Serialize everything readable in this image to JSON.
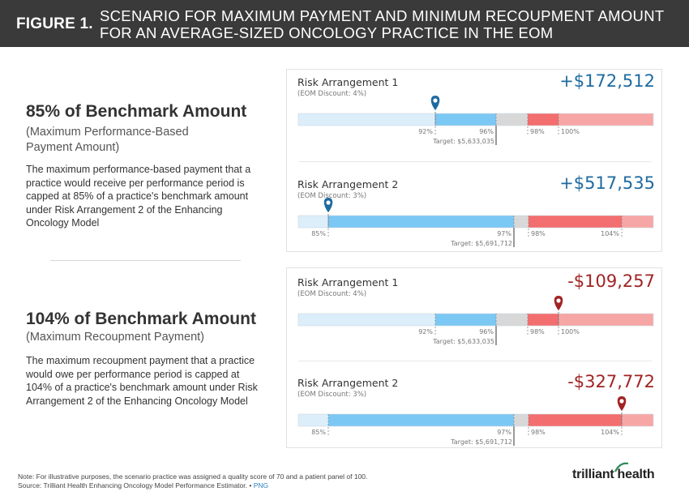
{
  "figure_label": "FIGURE 1.",
  "figure_title_line1": "SCENARIO FOR MAXIMUM PAYMENT AND MINIMUM RECOUPMENT AMOUNT",
  "figure_title_line2": "FOR AN AVERAGE-SIZED ONCOLOGY PRACTICE IN THE EOM",
  "sections": [
    {
      "heading": "85% of Benchmark Amount",
      "subheading_line1": "(Maximum Performance-Based",
      "subheading_line2": "Payment Amount)",
      "body": "The maximum performance-based payment that a practice would receive per performance period is capped at 85% of a practice's benchmark amount under Risk Arrangement 2 of the Enhancing Oncology Model"
    },
    {
      "heading": "104% of Benchmark Amount",
      "subheading_line1": "(Maximum Recoupment Payment)",
      "subheading_line2": "",
      "body": "The maximum recoupment payment that a practice would owe per performance period is capped at 104% of a practice's benchmark amount under Risk Arrangement 2 of the Enhancing Oncology Model"
    }
  ],
  "chart_data": [
    {
      "type": "bar",
      "title": "Risk Arrangement 1",
      "subtitle": "(EOM Discount: 4%)",
      "amount": "+$172,512",
      "sign": "pos",
      "axis_range": [
        85,
        104
      ],
      "segments": [
        {
          "from": 85,
          "to": 92,
          "color": "#ddeefb"
        },
        {
          "from": 92,
          "to": 96,
          "color": "#7cc8f4"
        },
        {
          "from": 96,
          "to": 98,
          "color": "#d8d8d8"
        },
        {
          "from": 98,
          "to": 100,
          "color": "#f36e6e"
        },
        {
          "from": 100,
          "to": 104,
          "color": "#f7a6a6"
        }
      ],
      "ticks": [
        {
          "value": 92,
          "label": "92%",
          "side": "left"
        },
        {
          "value": 96,
          "label": "96%",
          "side": "left"
        },
        {
          "value": 98,
          "label": "98%",
          "side": "right"
        },
        {
          "value": 100,
          "label": "100%",
          "side": "right"
        }
      ],
      "target_label": "Target: $5,633,035",
      "target_value": 96,
      "marker_value": 92,
      "marker_color": "#1e6aa0"
    },
    {
      "type": "bar",
      "title": "Risk Arrangement 2",
      "subtitle": "(EOM Discount: 3%)",
      "amount": "+$517,535",
      "sign": "pos",
      "axis_range": [
        83,
        104
      ],
      "segments": [
        {
          "from": 83,
          "to": 85,
          "color": "#ddeefb"
        },
        {
          "from": 85,
          "to": 97,
          "color": "#7cc8f4"
        },
        {
          "from": 97,
          "to": 98,
          "color": "#d8d8d8"
        },
        {
          "from": 98,
          "to": 104,
          "color": "#f36e6e"
        },
        {
          "from": 104,
          "to": 106,
          "color": "#f7a6a6"
        }
      ],
      "ticks": [
        {
          "value": 85,
          "label": "85%",
          "side": "left"
        },
        {
          "value": 97,
          "label": "97%",
          "side": "left"
        },
        {
          "value": 98,
          "label": "98%",
          "side": "right"
        },
        {
          "value": 104,
          "label": "104%",
          "side": "left"
        }
      ],
      "target_label": "Target: $5,691,712",
      "target_value": 97,
      "marker_value": 85,
      "marker_color": "#1e6aa0"
    },
    {
      "type": "bar",
      "title": "Risk Arrangement 1",
      "subtitle": "(EOM Discount: 4%)",
      "amount": "-$109,257",
      "sign": "neg",
      "axis_range": [
        85,
        104
      ],
      "segments": [
        {
          "from": 85,
          "to": 92,
          "color": "#ddeefb"
        },
        {
          "from": 92,
          "to": 96,
          "color": "#7cc8f4"
        },
        {
          "from": 96,
          "to": 98,
          "color": "#d8d8d8"
        },
        {
          "from": 98,
          "to": 100,
          "color": "#f36e6e"
        },
        {
          "from": 100,
          "to": 104,
          "color": "#f7a6a6"
        }
      ],
      "ticks": [
        {
          "value": 92,
          "label": "92%",
          "side": "left"
        },
        {
          "value": 96,
          "label": "96%",
          "side": "left"
        },
        {
          "value": 98,
          "label": "98%",
          "side": "right"
        },
        {
          "value": 100,
          "label": "100%",
          "side": "right"
        }
      ],
      "target_label": "Target: $5,633,035",
      "target_value": 96,
      "marker_value": 100,
      "marker_color": "#a22323"
    },
    {
      "type": "bar",
      "title": "Risk Arrangement 2",
      "subtitle": "(EOM Discount: 3%)",
      "amount": "-$327,772",
      "sign": "neg",
      "axis_range": [
        83,
        104
      ],
      "segments": [
        {
          "from": 83,
          "to": 85,
          "color": "#ddeefb"
        },
        {
          "from": 85,
          "to": 97,
          "color": "#7cc8f4"
        },
        {
          "from": 97,
          "to": 98,
          "color": "#d8d8d8"
        },
        {
          "from": 98,
          "to": 104,
          "color": "#f36e6e"
        },
        {
          "from": 104,
          "to": 106,
          "color": "#f7a6a6"
        }
      ],
      "ticks": [
        {
          "value": 85,
          "label": "85%",
          "side": "left"
        },
        {
          "value": 97,
          "label": "97%",
          "side": "left"
        },
        {
          "value": 98,
          "label": "98%",
          "side": "right"
        },
        {
          "value": 104,
          "label": "104%",
          "side": "left"
        }
      ],
      "target_label": "Target: $5,691,712",
      "target_value": 97,
      "marker_value": 104,
      "marker_color": "#a22323"
    }
  ],
  "footer": {
    "note": "Note: For illustrative purposes, the scenario practice was assigned a quality score of 70 and a patient panel of 100.",
    "source": "Source: Trilliant Health Enhancing Oncology Model Performance Estimator. •",
    "png_link": "PNG"
  },
  "logo": {
    "part1": "trilliant",
    "part2": "health",
    "accent_color": "#2e8b57"
  }
}
